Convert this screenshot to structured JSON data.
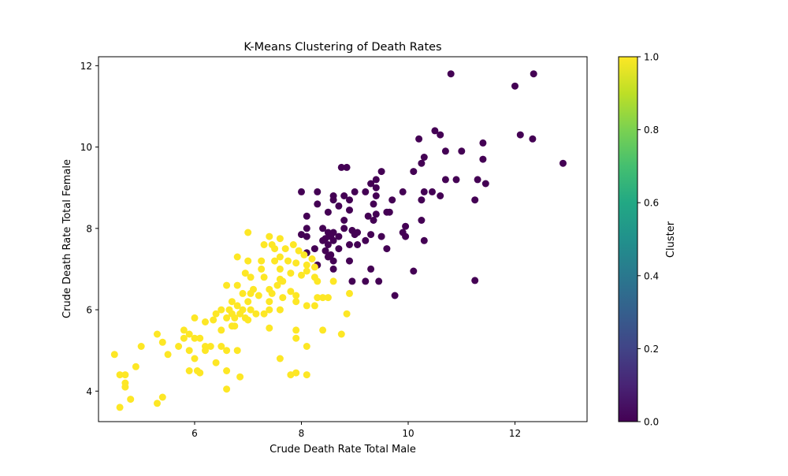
{
  "chart_data": {
    "type": "scatter",
    "title": "K-Means Clustering of Death Rates",
    "xlabel": "Crude Death Rate Total Male",
    "ylabel": "Crude Death Rate Total Female",
    "xlim": [
      4.2,
      13.35
    ],
    "ylim": [
      3.25,
      12.22
    ],
    "xticks": [
      "6",
      "8",
      "10",
      "12"
    ],
    "yticks": [
      "4",
      "6",
      "8",
      "10",
      "12"
    ],
    "colorbar": {
      "label": "Cluster",
      "range": [
        0.0,
        1.0
      ],
      "ticks": [
        "0.0",
        "0.2",
        "0.4",
        "0.6",
        "0.8",
        "1.0"
      ],
      "colormap": "viridis"
    },
    "cluster_colors": {
      "0": "#440154",
      "1": "#fde725"
    },
    "grid": false,
    "series": [
      {
        "cluster": 0,
        "points": [
          [
            10.8,
            11.8
          ],
          [
            12.35,
            11.8
          ],
          [
            12.0,
            11.5
          ],
          [
            10.5,
            10.4
          ],
          [
            10.6,
            10.3
          ],
          [
            12.1,
            10.3
          ],
          [
            12.33,
            10.2
          ],
          [
            10.2,
            10.2
          ],
          [
            11.4,
            10.1
          ],
          [
            10.7,
            9.9
          ],
          [
            11.0,
            9.9
          ],
          [
            10.3,
            9.75
          ],
          [
            11.4,
            9.7
          ],
          [
            10.25,
            9.6
          ],
          [
            12.9,
            9.6
          ],
          [
            8.75,
            9.5
          ],
          [
            8.85,
            9.5
          ],
          [
            9.5,
            9.4
          ],
          [
            10.1,
            9.4
          ],
          [
            10.7,
            9.2
          ],
          [
            10.9,
            9.2
          ],
          [
            11.3,
            9.2
          ],
          [
            9.4,
            9.2
          ],
          [
            9.3,
            9.1
          ],
          [
            11.45,
            9.1
          ],
          [
            9.4,
            9.0
          ],
          [
            10.45,
            8.9
          ],
          [
            10.3,
            8.9
          ],
          [
            9.0,
            8.9
          ],
          [
            8.3,
            8.9
          ],
          [
            8.0,
            8.9
          ],
          [
            9.9,
            8.9
          ],
          [
            9.2,
            8.9
          ],
          [
            9.4,
            8.8
          ],
          [
            10.6,
            8.8
          ],
          [
            8.8,
            8.8
          ],
          [
            8.6,
            8.8
          ],
          [
            8.6,
            8.7
          ],
          [
            8.9,
            8.7
          ],
          [
            9.7,
            8.7
          ],
          [
            10.25,
            8.7
          ],
          [
            11.25,
            8.7
          ],
          [
            9.35,
            8.6
          ],
          [
            8.3,
            8.6
          ],
          [
            8.7,
            8.55
          ],
          [
            8.5,
            8.4
          ],
          [
            9.6,
            8.4
          ],
          [
            9.65,
            8.4
          ],
          [
            8.9,
            8.45
          ],
          [
            9.4,
            8.35
          ],
          [
            9.25,
            8.3
          ],
          [
            8.1,
            8.3
          ],
          [
            10.25,
            8.2
          ],
          [
            8.8,
            8.2
          ],
          [
            9.35,
            8.2
          ],
          [
            9.95,
            8.05
          ],
          [
            8.1,
            8.0
          ],
          [
            8.4,
            8.0
          ],
          [
            8.8,
            8.0
          ],
          [
            9.9,
            7.9
          ],
          [
            8.95,
            7.95
          ],
          [
            9.05,
            7.9
          ],
          [
            8.5,
            7.9
          ],
          [
            8.6,
            7.9
          ],
          [
            9.0,
            7.85
          ],
          [
            8.7,
            7.8
          ],
          [
            8.55,
            7.8
          ],
          [
            9.3,
            7.85
          ],
          [
            9.5,
            7.8
          ],
          [
            8.0,
            7.85
          ],
          [
            8.1,
            7.8
          ],
          [
            9.95,
            7.8
          ],
          [
            8.45,
            7.75
          ],
          [
            8.4,
            7.7
          ],
          [
            8.6,
            7.7
          ],
          [
            10.3,
            7.7
          ],
          [
            9.2,
            7.7
          ],
          [
            8.5,
            7.6
          ],
          [
            8.9,
            7.6
          ],
          [
            9.05,
            7.6
          ],
          [
            8.25,
            7.5
          ],
          [
            8.7,
            7.5
          ],
          [
            9.6,
            7.5
          ],
          [
            8.45,
            7.45
          ],
          [
            8.1,
            7.4
          ],
          [
            8.55,
            7.35
          ],
          [
            8.6,
            7.2
          ],
          [
            8.5,
            7.3
          ],
          [
            8.9,
            7.2
          ],
          [
            8.3,
            7.1
          ],
          [
            8.6,
            7.0
          ],
          [
            9.3,
            7.0
          ],
          [
            10.1,
            6.95
          ],
          [
            8.95,
            6.7
          ],
          [
            9.2,
            6.7
          ],
          [
            9.45,
            6.7
          ],
          [
            11.25,
            6.72
          ],
          [
            9.75,
            6.35
          ]
        ]
      },
      {
        "cluster": 1,
        "points": [
          [
            7.0,
            7.9
          ],
          [
            7.4,
            7.8
          ],
          [
            7.6,
            7.75
          ],
          [
            7.5,
            7.5
          ],
          [
            7.7,
            7.5
          ],
          [
            7.85,
            7.6
          ],
          [
            7.3,
            7.6
          ],
          [
            7.45,
            7.6
          ],
          [
            7.95,
            7.45
          ],
          [
            8.05,
            7.35
          ],
          [
            6.8,
            7.3
          ],
          [
            7.6,
            7.3
          ],
          [
            8.2,
            7.25
          ],
          [
            7.0,
            7.2
          ],
          [
            7.25,
            7.2
          ],
          [
            7.5,
            7.2
          ],
          [
            7.75,
            7.2
          ],
          [
            7.9,
            7.15
          ],
          [
            8.1,
            7.1
          ],
          [
            8.25,
            7.05
          ],
          [
            7.25,
            7.0
          ],
          [
            7.6,
            7.0
          ],
          [
            7.8,
            6.9
          ],
          [
            8.1,
            6.95
          ],
          [
            6.95,
            6.9
          ],
          [
            7.05,
            6.8
          ],
          [
            8.0,
            6.85
          ],
          [
            8.25,
            6.8
          ],
          [
            7.3,
            6.8
          ],
          [
            7.6,
            6.75
          ],
          [
            7.65,
            6.7
          ],
          [
            8.3,
            6.7
          ],
          [
            8.6,
            6.7
          ],
          [
            6.8,
            6.6
          ],
          [
            6.6,
            6.6
          ],
          [
            7.55,
            6.6
          ],
          [
            7.1,
            6.5
          ],
          [
            7.4,
            6.5
          ],
          [
            7.8,
            6.45
          ],
          [
            6.9,
            6.4
          ],
          [
            7.05,
            6.4
          ],
          [
            7.2,
            6.35
          ],
          [
            7.45,
            6.4
          ],
          [
            7.65,
            6.3
          ],
          [
            7.9,
            6.35
          ],
          [
            8.3,
            6.3
          ],
          [
            8.4,
            6.3
          ],
          [
            8.9,
            6.4
          ],
          [
            8.5,
            6.3
          ],
          [
            6.7,
            6.2
          ],
          [
            7.0,
            6.2
          ],
          [
            7.4,
            6.2
          ],
          [
            7.9,
            6.2
          ],
          [
            8.1,
            6.1
          ],
          [
            8.25,
            6.1
          ],
          [
            6.8,
            6.1
          ],
          [
            6.5,
            6.0
          ],
          [
            6.65,
            6.0
          ],
          [
            6.9,
            6.0
          ],
          [
            7.05,
            6.0
          ],
          [
            7.4,
            6.0
          ],
          [
            7.6,
            6.0
          ],
          [
            6.4,
            5.9
          ],
          [
            6.7,
            5.9
          ],
          [
            6.85,
            5.9
          ],
          [
            7.15,
            5.9
          ],
          [
            7.3,
            5.9
          ],
          [
            8.85,
            5.9
          ],
          [
            6.6,
            5.8
          ],
          [
            6.75,
            5.8
          ],
          [
            6.95,
            5.8
          ],
          [
            7.0,
            5.75
          ],
          [
            6.0,
            5.8
          ],
          [
            6.2,
            5.7
          ],
          [
            6.35,
            5.75
          ],
          [
            6.7,
            5.6
          ],
          [
            6.75,
            5.6
          ],
          [
            6.5,
            5.5
          ],
          [
            5.8,
            5.5
          ],
          [
            7.4,
            5.55
          ],
          [
            7.9,
            5.5
          ],
          [
            8.4,
            5.5
          ],
          [
            5.3,
            5.4
          ],
          [
            5.9,
            5.4
          ],
          [
            5.8,
            5.3
          ],
          [
            6.0,
            5.3
          ],
          [
            6.1,
            5.3
          ],
          [
            7.9,
            5.3
          ],
          [
            8.75,
            5.4
          ],
          [
            5.4,
            5.2
          ],
          [
            5.0,
            5.1
          ],
          [
            5.7,
            5.1
          ],
          [
            6.2,
            5.1
          ],
          [
            6.3,
            5.1
          ],
          [
            6.5,
            5.1
          ],
          [
            8.1,
            5.1
          ],
          [
            5.9,
            5.0
          ],
          [
            6.2,
            5.0
          ],
          [
            6.6,
            5.0
          ],
          [
            6.8,
            5.0
          ],
          [
            4.5,
            4.9
          ],
          [
            5.5,
            4.9
          ],
          [
            6.0,
            4.8
          ],
          [
            7.6,
            4.8
          ],
          [
            6.4,
            4.7
          ],
          [
            4.9,
            4.6
          ],
          [
            6.6,
            4.5
          ],
          [
            5.9,
            4.5
          ],
          [
            6.05,
            4.5
          ],
          [
            6.1,
            4.45
          ],
          [
            4.6,
            4.4
          ],
          [
            4.7,
            4.4
          ],
          [
            7.8,
            4.4
          ],
          [
            7.9,
            4.45
          ],
          [
            8.1,
            4.4
          ],
          [
            4.7,
            4.2
          ],
          [
            4.7,
            4.1
          ],
          [
            6.85,
            4.35
          ],
          [
            6.6,
            4.05
          ],
          [
            5.4,
            3.85
          ],
          [
            4.8,
            3.8
          ],
          [
            5.3,
            3.7
          ],
          [
            4.6,
            3.6
          ]
        ]
      }
    ]
  }
}
